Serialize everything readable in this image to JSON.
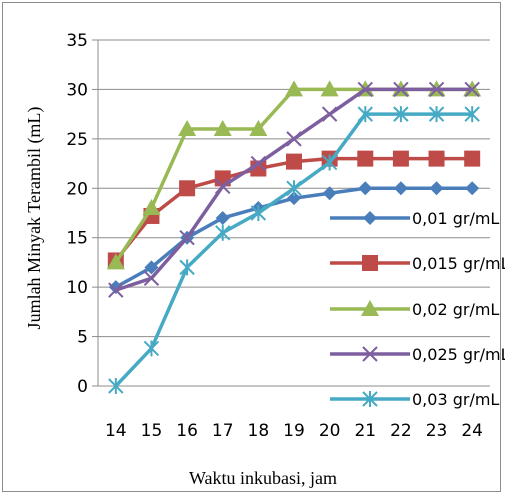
{
  "chart_data": {
    "type": "line",
    "title": "",
    "xlabel": "Waktu inkubasi, jam",
    "ylabel": "Jumlah Minyak Terambil (mL)",
    "x": [
      14,
      15,
      16,
      17,
      18,
      19,
      20,
      21,
      22,
      23,
      24
    ],
    "ylim": [
      0,
      35
    ],
    "yticks": [
      0,
      5,
      10,
      15,
      20,
      25,
      30,
      35
    ],
    "grid": "horizontal",
    "legend_position": "right",
    "series": [
      {
        "name": "0,01 gr/mL",
        "color": "#4a7ebb",
        "marker": "diamond",
        "values": [
          10,
          12,
          15,
          17,
          18,
          19,
          19.5,
          20,
          20,
          20,
          20
        ]
      },
      {
        "name": "0,015 gr/mL",
        "color": "#be4b48",
        "marker": "square",
        "values": [
          12.7,
          17.2,
          20,
          21,
          22,
          22.7,
          23,
          23,
          23,
          23,
          23
        ]
      },
      {
        "name": "0,02 gr/mL",
        "color": "#98b954",
        "marker": "triangle",
        "values": [
          12.5,
          18,
          26,
          26,
          26,
          30,
          30,
          30,
          30,
          30,
          30
        ]
      },
      {
        "name": "0,025 gr/mL",
        "color": "#7d5fa0",
        "marker": "x",
        "values": [
          9.7,
          10.9,
          15,
          20.2,
          22.5,
          25,
          27.5,
          30,
          30,
          30,
          30
        ]
      },
      {
        "name": "0,03 gr/mL",
        "color": "#46aac5",
        "marker": "star",
        "values": [
          0,
          3.8,
          12,
          15.5,
          17.5,
          20,
          22.6,
          27.5,
          27.5,
          27.5,
          27.5
        ]
      }
    ]
  }
}
